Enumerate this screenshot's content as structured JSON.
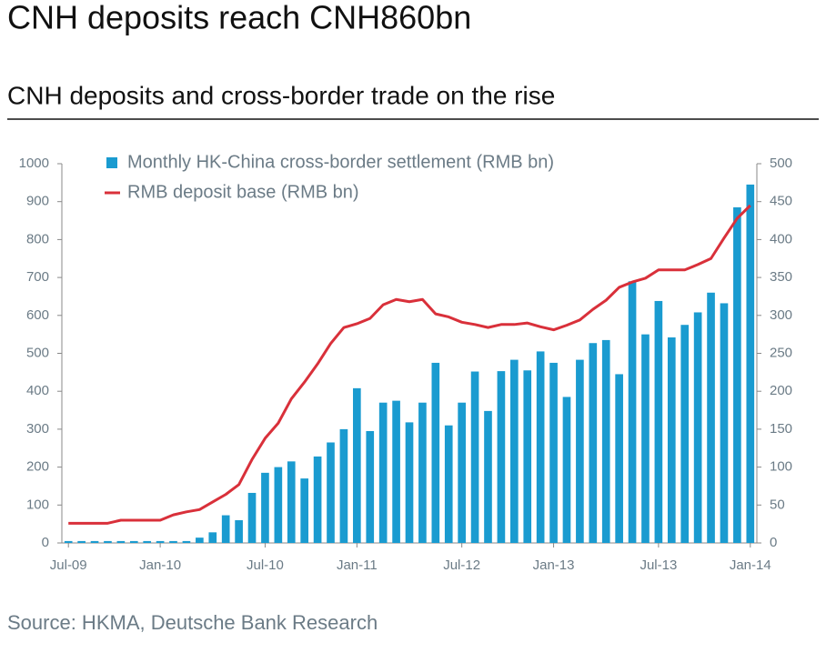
{
  "chart_data": {
    "type": "bar_line",
    "title": "CNH deposits reach CNH860bn",
    "subtitle": "CNH deposits and cross-border trade on the rise",
    "source": "Source: HKMA, Deutsche Bank Research",
    "categories": [
      "Jul-09",
      null,
      null,
      null,
      null,
      null,
      null,
      "Jan-10",
      null,
      null,
      null,
      null,
      null,
      null,
      null,
      "Jul-10",
      null,
      null,
      null,
      null,
      null,
      null,
      "Jan-11",
      null,
      null,
      null,
      null,
      null,
      null,
      null,
      "Jul-12",
      null,
      null,
      null,
      null,
      null,
      null,
      "Jan-13",
      null,
      null,
      null,
      null,
      null,
      null,
      null,
      "Jul-13",
      null,
      null,
      null,
      null,
      null,
      null,
      "Jan-14"
    ],
    "series": [
      {
        "name": "Monthly HK-China cross-border settlement (RMB bn)",
        "color": "#1a9bd0",
        "kind": "bar",
        "axis": "y",
        "values": [
          5,
          5,
          5,
          5,
          5,
          5,
          5,
          5,
          5,
          5,
          14,
          28,
          73,
          60,
          132,
          185,
          200,
          215,
          170,
          228,
          265,
          300,
          408,
          295,
          370,
          375,
          318,
          370,
          475,
          310,
          370,
          452,
          348,
          453,
          483,
          455,
          505,
          475,
          385,
          483,
          527,
          535,
          445,
          690,
          550,
          638,
          542,
          575,
          608,
          660,
          632,
          885,
          945
        ]
      },
      {
        "name": "RMB deposit base (RMB bn)",
        "color": "#d9303a",
        "kind": "line",
        "axis": "y2",
        "values": [
          26,
          26,
          26,
          26,
          30,
          30,
          30,
          30,
          37,
          41,
          44,
          54,
          64,
          77,
          110,
          138,
          158,
          190,
          212,
          236,
          263,
          284,
          289,
          296,
          314,
          321,
          318,
          321,
          302,
          298,
          291,
          288,
          284,
          288,
          288,
          290,
          285,
          281,
          287,
          294,
          308,
          320,
          337,
          344,
          349,
          360,
          360,
          360,
          367,
          375,
          402,
          428,
          445
        ]
      }
    ],
    "ylim": [
      0,
      1000
    ],
    "yticks": [
      0,
      100,
      200,
      300,
      400,
      500,
      600,
      700,
      800,
      900,
      1000
    ],
    "y2lim": [
      0,
      500
    ],
    "y2ticks": [
      0,
      50,
      100,
      150,
      200,
      250,
      300,
      350,
      400,
      450,
      500
    ],
    "legend": "top-left"
  }
}
